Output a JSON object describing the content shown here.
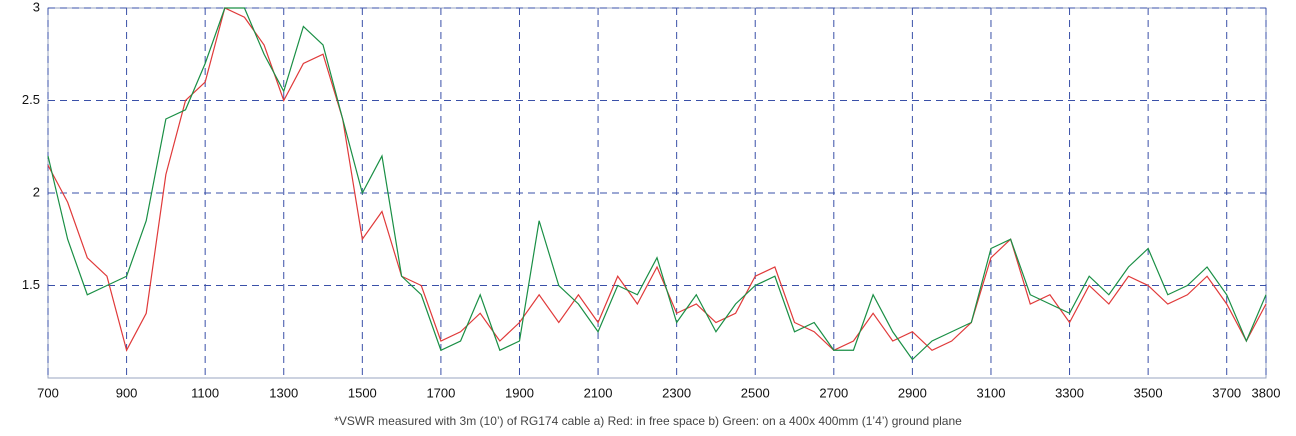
{
  "chart_data": {
    "type": "line",
    "caption": "*VSWR measured with 3m (10’) of RG174 cable a) Red: in free space b) Green: on a 400x 400mm (1’4’) ground plane",
    "x": [
      700,
      750,
      800,
      850,
      900,
      950,
      1000,
      1050,
      1100,
      1150,
      1200,
      1250,
      1300,
      1350,
      1400,
      1450,
      1500,
      1550,
      1600,
      1650,
      1700,
      1750,
      1800,
      1850,
      1900,
      1950,
      2000,
      2050,
      2100,
      2150,
      2200,
      2250,
      2300,
      2350,
      2400,
      2450,
      2500,
      2550,
      2600,
      2650,
      2700,
      2750,
      2800,
      2850,
      2900,
      2950,
      3000,
      3050,
      3100,
      3150,
      3200,
      3250,
      3300,
      3350,
      3400,
      3450,
      3500,
      3550,
      3600,
      3650,
      3700,
      3750,
      3800
    ],
    "series": [
      {
        "color": "#e03a3a",
        "values": [
          2.15,
          1.95,
          1.65,
          1.55,
          1.15,
          1.35,
          2.1,
          2.5,
          2.6,
          3.0,
          2.95,
          2.8,
          2.5,
          2.7,
          2.75,
          2.4,
          1.75,
          1.9,
          1.55,
          1.5,
          1.2,
          1.25,
          1.35,
          1.2,
          1.3,
          1.45,
          1.3,
          1.45,
          1.3,
          1.55,
          1.4,
          1.6,
          1.35,
          1.4,
          1.3,
          1.35,
          1.55,
          1.6,
          1.3,
          1.25,
          1.15,
          1.2,
          1.35,
          1.2,
          1.25,
          1.15,
          1.2,
          1.3,
          1.65,
          1.75,
          1.4,
          1.45,
          1.3,
          1.5,
          1.4,
          1.55,
          1.5,
          1.4,
          1.45,
          1.55,
          1.4,
          1.2,
          1.4
        ]
      },
      {
        "color": "#1a8f45",
        "values": [
          2.2,
          1.75,
          1.45,
          1.5,
          1.55,
          1.85,
          2.4,
          2.45,
          2.7,
          3.0,
          3.0,
          2.75,
          2.55,
          2.9,
          2.8,
          2.4,
          2.0,
          2.2,
          1.55,
          1.45,
          1.15,
          1.2,
          1.45,
          1.15,
          1.2,
          1.85,
          1.5,
          1.4,
          1.25,
          1.5,
          1.45,
          1.65,
          1.3,
          1.45,
          1.25,
          1.4,
          1.5,
          1.55,
          1.25,
          1.3,
          1.15,
          1.15,
          1.45,
          1.25,
          1.1,
          1.2,
          1.25,
          1.3,
          1.7,
          1.75,
          1.45,
          1.4,
          1.35,
          1.55,
          1.45,
          1.6,
          1.7,
          1.45,
          1.5,
          1.6,
          1.45,
          1.2,
          1.45
        ]
      }
    ],
    "xlim": [
      700,
      3800
    ],
    "xticks": [
      700,
      900,
      1100,
      1300,
      1500,
      1700,
      1900,
      2100,
      2300,
      2500,
      2700,
      2900,
      3100,
      3300,
      3500,
      3700,
      3800
    ],
    "ylim": [
      1,
      3
    ],
    "yticks": [
      1.5,
      2,
      2.5,
      3
    ],
    "grid": true
  }
}
